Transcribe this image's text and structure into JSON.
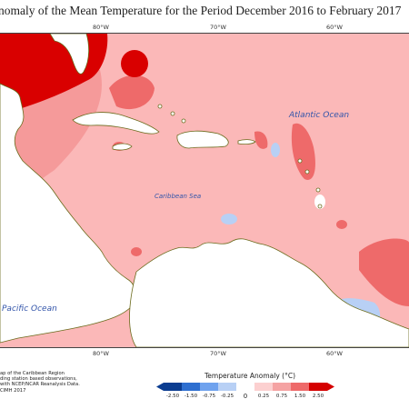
{
  "title": "nomaly of the Mean Temperature for the Period December 2016 to February 2017",
  "longitude_labels_top": [
    "80°W",
    "70°W",
    "60°W"
  ],
  "longitude_labels_bottom": [
    "80°W",
    "70°W",
    "60°W"
  ],
  "regions": {
    "ocean_atlantic": "Atlantic Ocean",
    "sea_caribbean": "Caribbean Sea",
    "ocean_pacific": "Pacific Ocean"
  },
  "credit_lines": [
    "ap of the Caribbean Region",
    "ding station based observations,",
    "with NCEP/NCAR Reanalysis Data.",
    "CIMH 2017"
  ],
  "legend": {
    "title": "Temperature Anomaly (°C)",
    "ticks": [
      "-2.50",
      "-1.50",
      "-0.75",
      "-0.25",
      "0",
      "0.25",
      "0.75",
      "1.50",
      "2.50"
    ],
    "colors": {
      "neg_2_5": "#0b3d91",
      "neg_1_5": "#2e6fd0",
      "neg_0_75": "#6fa2ee",
      "neg_0_25": "#b8d0f5",
      "zero_band": "#ffffff",
      "pos_0_25": "#fcd0d0",
      "pos_0_75": "#f5a3a3",
      "pos_1_5": "#ee6a6a",
      "pos_2_5": "#d50000"
    }
  },
  "map_colors": {
    "land": "#ffffff",
    "coast": "#6b6b1c",
    "ocean_base": "#fbb8b8",
    "warm_1": "#f59a9a",
    "warm_2": "#ee6a6a",
    "hot": "#d90000",
    "cool": "#b8d0f5"
  }
}
